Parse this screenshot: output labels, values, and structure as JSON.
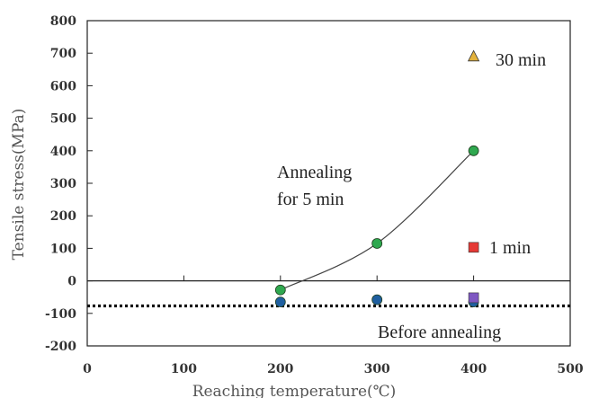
{
  "chart_data": {
    "type": "scatter",
    "title": "",
    "xlabel": "Reaching temperature(℃)",
    "ylabel": "Tensile stress(MPa)",
    "xlim": [
      0,
      500
    ],
    "ylim": [
      -200,
      800
    ],
    "xticks": [
      "0",
      "100",
      "200",
      "300",
      "400",
      "500"
    ],
    "yticks": [
      "800",
      "700",
      "600",
      "500",
      "400",
      "300",
      "200",
      "100",
      "0",
      "-100",
      "-200"
    ],
    "grid": false,
    "series": [
      {
        "id": "anneal5",
        "marker": "circle",
        "color": "#2fa84f",
        "connect": "smooth",
        "points": [
          [
            200,
            -28
          ],
          [
            300,
            115
          ],
          [
            400,
            400
          ]
        ]
      },
      {
        "id": "before",
        "marker": "circle",
        "color": "#1f5fa0",
        "points": [
          [
            200,
            -65
          ],
          [
            300,
            -58
          ],
          [
            400,
            -65
          ]
        ]
      },
      {
        "id": "min30",
        "marker": "triangle",
        "color": "#e3b23c",
        "points": [
          [
            400,
            690
          ]
        ]
      },
      {
        "id": "min1",
        "marker": "square",
        "color": "#e53935",
        "points": [
          [
            400,
            103
          ]
        ]
      },
      {
        "id": "square-purple",
        "marker": "square",
        "color": "#7e57c2",
        "points": [
          [
            400,
            -52
          ]
        ]
      }
    ],
    "reference_line": {
      "y": -77,
      "style": "dotted"
    },
    "annotations": {
      "anneal5_line1": "Annealing",
      "anneal5_line2": "for 5 min",
      "min30": "30 min",
      "min1": "1 min",
      "before": "Before annealing"
    }
  }
}
